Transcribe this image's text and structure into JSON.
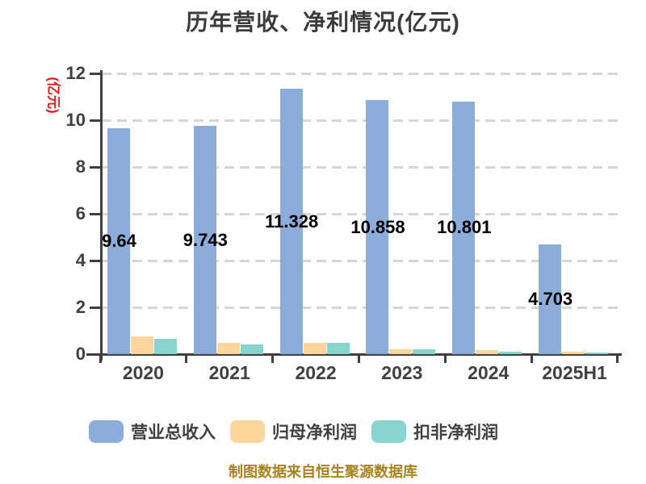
{
  "chart_data": {
    "type": "bar",
    "title": "历年营收、净利情况(亿元)",
    "ylabel": "(亿元)",
    "xlabel": "",
    "ylim": [
      0,
      12
    ],
    "yticks": [
      0,
      2,
      4,
      6,
      8,
      10,
      12
    ],
    "grid": "horizontal-dashed",
    "legend_position": "bottom",
    "categories": [
      "2020",
      "2021",
      "2022",
      "2023",
      "2024",
      "2025H1"
    ],
    "series": [
      {
        "name": "营业总收入",
        "color": "#8CACDA",
        "values": [
          9.64,
          9.743,
          11.328,
          10.858,
          10.801,
          4.703
        ],
        "data_labels": [
          "9.64",
          "9.743",
          "11.328",
          "10.858",
          "10.801",
          "4.703"
        ]
      },
      {
        "name": "归母净利润",
        "color": "#FCD69B",
        "values": [
          0.76,
          0.48,
          0.47,
          0.22,
          0.16,
          0.09
        ],
        "data_labels": []
      },
      {
        "name": "扣非净利润",
        "color": "#87D5CE",
        "values": [
          0.66,
          0.41,
          0.47,
          0.19,
          0.12,
          0.07
        ],
        "data_labels": []
      }
    ]
  },
  "colors": {
    "title_text": "#3C3C3C",
    "axis": "#3F3F3F",
    "tick_label_text": "#404040",
    "gridline": "#D6D6D6",
    "ylabel_text": "#E6191C",
    "value_label_text": "#000000",
    "footer_text": "#A8821E",
    "background": "#FFFFFF"
  },
  "footer": {
    "text": "制图数据来自恒生聚源数据库"
  }
}
